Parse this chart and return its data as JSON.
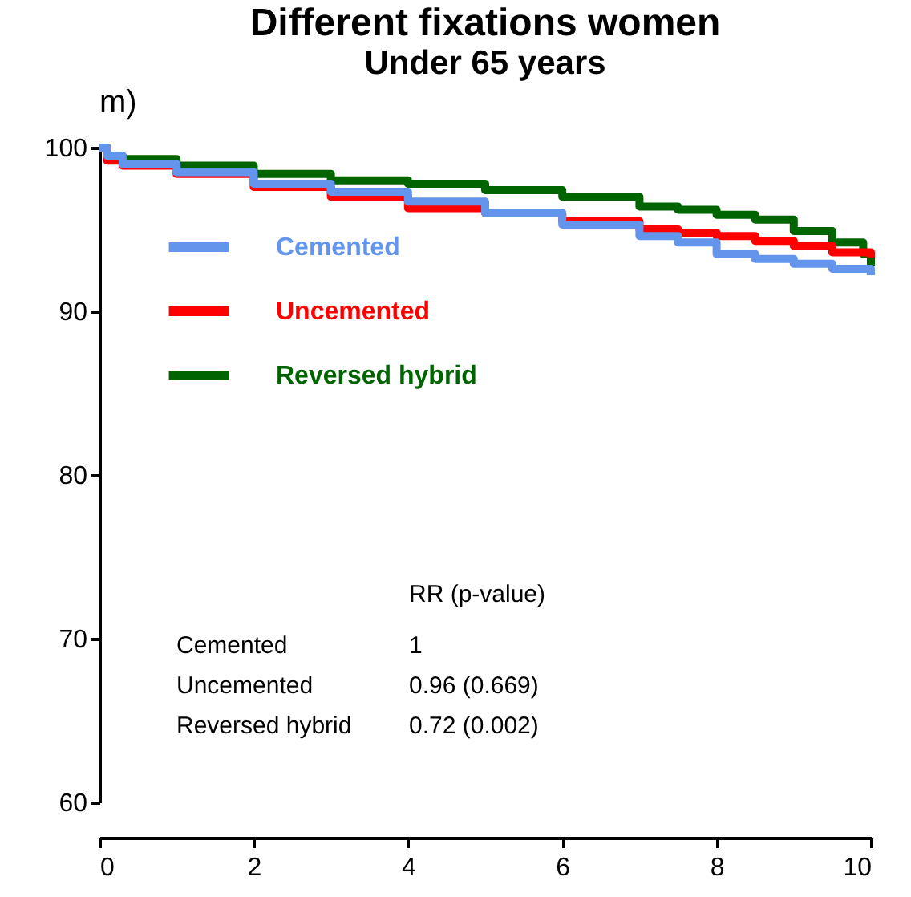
{
  "chart_data": {
    "type": "step",
    "title": "Different fixations women",
    "subtitle": "Under 65 years",
    "annotations": [
      "m)",
      "RR (p-value)",
      "Cemented",
      "1",
      "Uncemented",
      "0.96 (0.669)",
      "Reversed hybrid",
      "0.72 (0.002)"
    ],
    "series": [
      {
        "name": "Cemented",
        "color": "#6495ed",
        "x": [
          0,
          0.1,
          0.3,
          1,
          2,
          3,
          4,
          5,
          6,
          7,
          7.5,
          8,
          8.5,
          9,
          9.5,
          10
        ],
        "values": [
          100,
          99.5,
          99.0,
          98.5,
          97.8,
          97.3,
          96.7,
          96.0,
          95.3,
          94.6,
          94.2,
          93.5,
          93.2,
          92.9,
          92.6,
          92.2
        ]
      },
      {
        "name": "Uncemented",
        "color": "#ff0000",
        "x": [
          0,
          0.1,
          0.3,
          1,
          2,
          3,
          4,
          5,
          6,
          7,
          7.5,
          8,
          8.5,
          9,
          9.5,
          10
        ],
        "values": [
          100,
          99.2,
          98.9,
          98.4,
          97.6,
          97.0,
          96.3,
          96.0,
          95.5,
          95.0,
          94.8,
          94.6,
          94.3,
          94.0,
          93.6,
          93.3
        ]
      },
      {
        "name": "Reversed hybrid",
        "color": "#006400",
        "x": [
          0,
          0.1,
          0.3,
          1,
          2,
          3,
          4,
          5,
          6,
          7,
          7.5,
          8,
          8.5,
          9,
          9.5,
          9.9,
          10
        ],
        "values": [
          100,
          99.5,
          99.3,
          98.9,
          98.4,
          98.0,
          97.8,
          97.4,
          97.0,
          96.4,
          96.2,
          95.9,
          95.6,
          94.9,
          94.2,
          93.5,
          92.8
        ]
      }
    ],
    "xlim": [
      0,
      10
    ],
    "xticks": [
      0,
      2,
      4,
      6,
      8,
      10
    ],
    "ylim": [
      60,
      100
    ],
    "yticks": [
      60,
      70,
      80,
      90,
      100
    ],
    "legend": "top left",
    "marker": "none",
    "line_style": "solid",
    "grid": false
  }
}
